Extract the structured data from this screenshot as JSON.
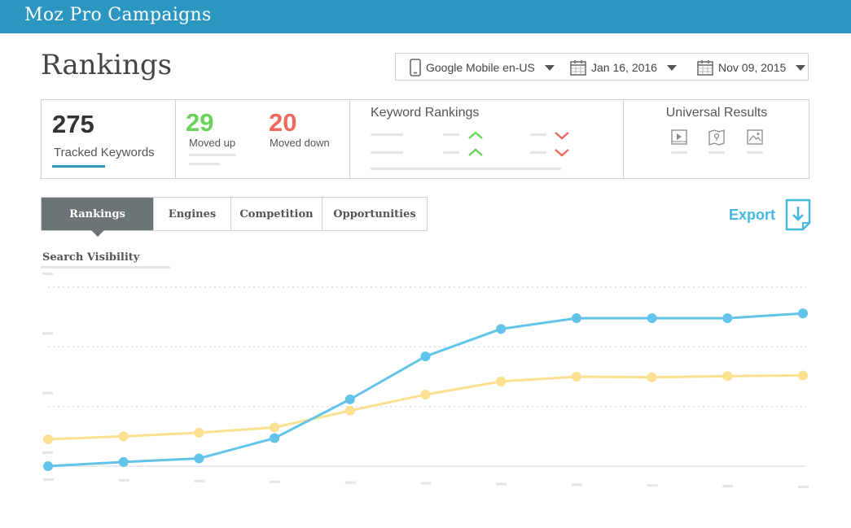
{
  "app": {
    "title": "Moz Pro Campaigns"
  },
  "page": {
    "title": "Rankings"
  },
  "filters": {
    "engine": "Google Mobile en-US",
    "date1": "Jan 16, 2016",
    "date2": "Nov 09, 2015"
  },
  "stats": {
    "tracked": {
      "value": "275",
      "label": "Tracked Keywords"
    },
    "moved_up": {
      "value": "29",
      "label": "Moved up"
    },
    "moved_down": {
      "value": "20",
      "label": "Moved down"
    },
    "keyword_rankings": {
      "title": "Keyword Rankings"
    },
    "universal_results": {
      "title": "Universal Results"
    }
  },
  "tabs": [
    {
      "label": "Rankings",
      "active": true
    },
    {
      "label": "Engines",
      "active": false
    },
    {
      "label": "Competition",
      "active": false
    },
    {
      "label": "Opportunities",
      "active": false
    }
  ],
  "export": {
    "label": "Export"
  },
  "chart_section": {
    "label": "Search Visibility"
  },
  "colors": {
    "header": "#2b96c0",
    "up": "#6bd15c",
    "down": "#f06a5c",
    "series_blue": "#62c4ea",
    "series_yellow": "#fbe08f",
    "accent": "#45b8e0"
  },
  "chart_data": {
    "type": "line",
    "title": "",
    "xlabel": "",
    "ylabel": "",
    "x": [
      1,
      2,
      3,
      4,
      5,
      6,
      7,
      8,
      9,
      10,
      11
    ],
    "ylim": [
      0,
      3
    ],
    "grid": true,
    "legend": "none",
    "series": [
      {
        "color": "#62c4ea",
        "values": [
          0.0,
          0.07,
          0.13,
          0.47,
          1.12,
          1.84,
          2.3,
          2.48,
          2.48,
          2.48,
          2.56
        ]
      },
      {
        "color": "#fbe08f",
        "values": [
          0.45,
          0.5,
          0.56,
          0.65,
          0.93,
          1.2,
          1.42,
          1.5,
          1.49,
          1.51,
          1.52
        ]
      }
    ]
  }
}
